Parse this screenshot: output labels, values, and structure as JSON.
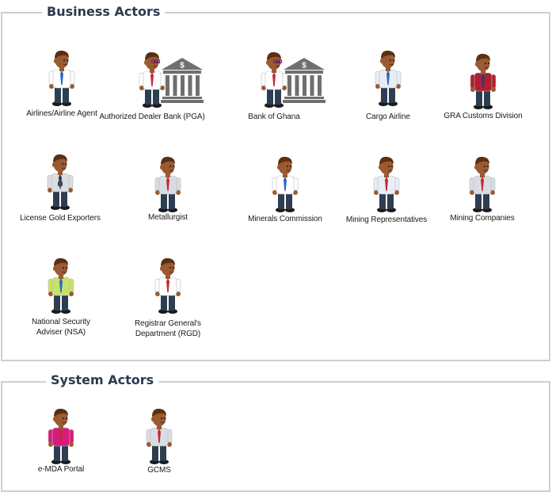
{
  "business_section": {
    "title": "Business Actors",
    "actors": [
      {
        "label": "Airlines/Airline Agent",
        "shirt": "#ffffff",
        "tie": "#2a66c4"
      },
      {
        "label": "Authorized Dealer Bank (PGA)",
        "shirt": "#ffffff",
        "tie": "#c7283a",
        "glasses": true,
        "building": true
      },
      {
        "label": "Bank of Ghana",
        "shirt": "#ffffff",
        "tie": "#c7283a",
        "glasses": true,
        "building": true
      },
      {
        "label": "Cargo Airline",
        "shirt": "#e9eef4",
        "tie": "#2a66c4"
      },
      {
        "label": "GRA Customs Division",
        "shirt": "#b0202e",
        "tie": "#1d3f8a"
      },
      {
        "label": "License Gold Exporters",
        "shirt": "#d9dde1",
        "tie": "#2e3a46",
        "badge": true
      },
      {
        "label": "Metallurgist",
        "shirt": "#d9dde1",
        "tie": "#c7283a"
      },
      {
        "label": "Minerals Commission",
        "shirt": "#ffffff",
        "tie": "#2a66c4"
      },
      {
        "label": "Mining Representatives",
        "shirt": "#e9eef4",
        "tie": "#c7283a"
      },
      {
        "label": "Mining Companies",
        "shirt": "#d9dde1",
        "tie": "#c7283a"
      },
      {
        "label_lines": [
          "National Security",
          "Adviser (NSA)"
        ],
        "shirt": "#c9e06a",
        "tie": "#2a66c4"
      },
      {
        "label_lines": [
          "Registrar General's",
          "Department (RGD)"
        ],
        "shirt": "#ffffff",
        "tie": "#c7283a"
      }
    ]
  },
  "system_section": {
    "title": "System Actors",
    "actors": [
      {
        "label": "e-MDA Portal",
        "shirt": "#d81b7a",
        "tie": "#c7283a"
      },
      {
        "label": "GCMS",
        "shirt": "#d9dde1",
        "tie": "#c7283a"
      }
    ]
  },
  "building_symbol": "$",
  "colors": {
    "panel_border": "#cfcfcf",
    "title_text": "#2b3a4f",
    "skin": "#9a5a32",
    "hair": "#5a2f14",
    "pants": "#2d3e52",
    "building": "#6f6f6f"
  },
  "icons": [
    "person-icon",
    "bank-building-icon"
  ]
}
